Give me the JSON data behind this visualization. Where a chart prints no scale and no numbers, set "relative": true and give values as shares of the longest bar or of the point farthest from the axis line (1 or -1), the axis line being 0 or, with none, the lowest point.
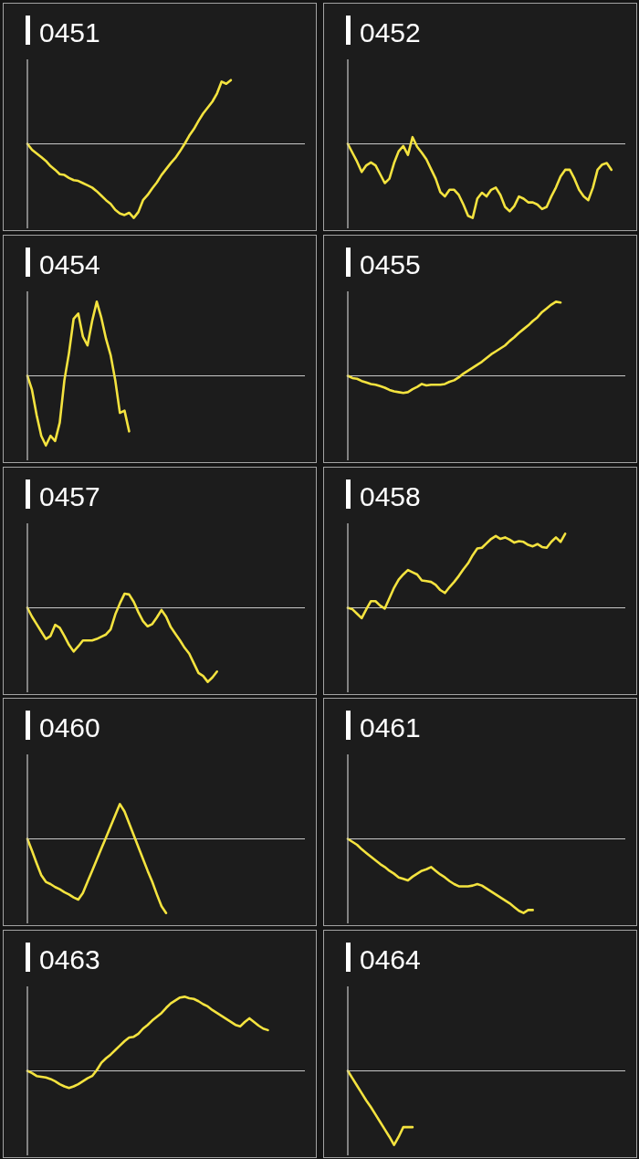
{
  "chart_data": [
    {
      "type": "line",
      "title": "0451",
      "relative": true,
      "ref_lines": [
        {
          "axis": "y",
          "value": 0,
          "color": "#c8c8c8"
        }
      ],
      "categories": [
        null,
        null,
        null,
        null,
        null,
        null,
        null,
        null,
        null,
        null,
        null,
        null,
        null,
        null,
        null,
        null,
        null,
        null,
        null,
        null,
        null,
        null,
        null,
        null,
        null,
        null,
        null,
        null,
        null,
        null,
        null,
        null,
        null,
        null,
        null,
        null,
        null,
        null,
        null,
        null,
        null,
        null,
        null,
        null,
        null,
        null,
        null,
        null,
        null,
        null,
        null,
        null,
        null,
        null,
        null,
        null,
        null,
        null,
        null,
        null,
        null
      ],
      "series": [
        {
          "color": "#f4e33f",
          "values": [
            0,
            -0.08,
            -0.13,
            -0.18,
            -0.23,
            -0.3,
            -0.35,
            -0.41,
            -0.42,
            -0.46,
            -0.49,
            -0.5,
            -0.53,
            -0.56,
            -0.59,
            -0.64,
            -0.7,
            -0.76,
            -0.81,
            -0.89,
            -0.94,
            -0.96,
            -0.93,
            -1,
            -0.92,
            -0.76,
            -0.69,
            -0.6,
            -0.52,
            -0.42,
            -0.34,
            -0.26,
            -0.19,
            -0.1,
            0,
            0.11,
            0.2,
            0.31,
            0.41,
            0.49,
            0.57,
            0.68,
            0.84,
            0.81,
            0.86,
            null,
            null,
            null,
            null,
            null,
            null,
            null,
            null,
            null,
            null,
            null,
            null,
            null,
            null,
            null,
            null
          ]
        }
      ]
    },
    {
      "type": "line",
      "title": "0452",
      "relative": true,
      "ref_lines": [
        {
          "axis": "y",
          "value": 0,
          "color": "#c8c8c8"
        }
      ],
      "categories": [
        null,
        null,
        null,
        null,
        null,
        null,
        null,
        null,
        null,
        null,
        null,
        null,
        null,
        null,
        null,
        null,
        null,
        null,
        null,
        null,
        null,
        null,
        null,
        null,
        null,
        null,
        null,
        null,
        null,
        null,
        null,
        null,
        null,
        null,
        null,
        null,
        null,
        null,
        null,
        null,
        null,
        null,
        null,
        null,
        null,
        null,
        null,
        null,
        null,
        null,
        null,
        null,
        null,
        null,
        null,
        null,
        null,
        null,
        null,
        null,
        null
      ],
      "series": [
        {
          "color": "#f4e33f",
          "values": [
            0,
            -0.12,
            -0.24,
            -0.38,
            -0.29,
            -0.25,
            -0.29,
            -0.41,
            -0.53,
            -0.47,
            -0.26,
            -0.1,
            -0.03,
            -0.15,
            0.09,
            -0.04,
            -0.12,
            -0.21,
            -0.34,
            -0.47,
            -0.65,
            -0.71,
            -0.62,
            -0.62,
            -0.69,
            -0.82,
            -0.97,
            -1,
            -0.74,
            -0.66,
            -0.71,
            -0.62,
            -0.59,
            -0.69,
            -0.85,
            -0.91,
            -0.84,
            -0.71,
            -0.74,
            -0.79,
            -0.79,
            -0.82,
            -0.88,
            -0.85,
            -0.71,
            -0.59,
            -0.44,
            -0.35,
            -0.35,
            -0.47,
            -0.62,
            -0.71,
            -0.76,
            -0.59,
            -0.35,
            -0.28,
            -0.26,
            -0.35,
            null,
            null,
            null
          ]
        }
      ]
    },
    {
      "type": "line",
      "title": "0454",
      "relative": true,
      "ref_lines": [
        {
          "axis": "y",
          "value": 0,
          "color": "#c8c8c8"
        }
      ],
      "categories": [
        null,
        null,
        null,
        null,
        null,
        null,
        null,
        null,
        null,
        null,
        null,
        null,
        null,
        null,
        null,
        null,
        null,
        null,
        null,
        null,
        null,
        null,
        null,
        null,
        null,
        null,
        null,
        null,
        null,
        null,
        null,
        null,
        null,
        null,
        null,
        null,
        null,
        null,
        null,
        null,
        null,
        null,
        null,
        null,
        null,
        null,
        null,
        null,
        null,
        null,
        null,
        null,
        null,
        null,
        null,
        null,
        null,
        null,
        null,
        null,
        null
      ],
      "series": [
        {
          "color": "#f4e33f",
          "values": [
            0,
            -0.19,
            -0.53,
            -0.81,
            -0.94,
            -0.81,
            -0.88,
            -0.63,
            -0.06,
            0.31,
            0.77,
            0.84,
            0.53,
            0.41,
            0.74,
            1,
            0.78,
            0.5,
            0.28,
            -0.06,
            -0.5,
            -0.47,
            -0.75,
            null,
            null,
            null,
            null,
            null,
            null,
            null,
            null,
            null,
            null,
            null,
            null,
            null,
            null,
            null,
            null,
            null,
            null,
            null,
            null,
            null,
            null,
            null,
            null,
            null,
            null,
            null,
            null,
            null,
            null,
            null,
            null,
            null,
            null,
            null,
            null,
            null,
            null
          ]
        }
      ]
    },
    {
      "type": "line",
      "title": "0455",
      "relative": true,
      "ref_lines": [
        {
          "axis": "y",
          "value": 0,
          "color": "#c8c8c8"
        }
      ],
      "categories": [
        null,
        null,
        null,
        null,
        null,
        null,
        null,
        null,
        null,
        null,
        null,
        null,
        null,
        null,
        null,
        null,
        null,
        null,
        null,
        null,
        null,
        null,
        null,
        null,
        null,
        null,
        null,
        null,
        null,
        null,
        null,
        null,
        null,
        null,
        null,
        null,
        null,
        null,
        null,
        null,
        null,
        null,
        null,
        null,
        null,
        null,
        null,
        null,
        null,
        null,
        null,
        null,
        null,
        null,
        null,
        null,
        null,
        null,
        null,
        null,
        null
      ],
      "series": [
        {
          "color": "#f4e33f",
          "values": [
            0,
            -0.03,
            -0.04,
            -0.07,
            -0.09,
            -0.11,
            -0.12,
            -0.14,
            -0.16,
            -0.19,
            -0.21,
            -0.22,
            -0.23,
            -0.22,
            -0.18,
            -0.15,
            -0.11,
            -0.13,
            -0.12,
            -0.12,
            -0.12,
            -0.11,
            -0.08,
            -0.06,
            -0.02,
            0.03,
            0.07,
            0.11,
            0.15,
            0.19,
            0.24,
            0.29,
            0.33,
            0.37,
            0.41,
            0.47,
            0.52,
            0.58,
            0.63,
            0.68,
            0.74,
            0.79,
            0.86,
            0.91,
            0.96,
            1,
            0.99,
            null,
            null,
            null,
            null,
            null,
            null,
            null,
            null,
            null,
            null,
            null,
            null,
            null,
            null
          ]
        }
      ]
    },
    {
      "type": "line",
      "title": "0457",
      "relative": true,
      "ref_lines": [
        {
          "axis": "y",
          "value": 0,
          "color": "#c8c8c8"
        }
      ],
      "categories": [
        null,
        null,
        null,
        null,
        null,
        null,
        null,
        null,
        null,
        null,
        null,
        null,
        null,
        null,
        null,
        null,
        null,
        null,
        null,
        null,
        null,
        null,
        null,
        null,
        null,
        null,
        null,
        null,
        null,
        null,
        null,
        null,
        null,
        null,
        null,
        null,
        null,
        null,
        null,
        null,
        null,
        null,
        null,
        null,
        null,
        null,
        null,
        null,
        null,
        null,
        null,
        null,
        null,
        null,
        null,
        null,
        null,
        null,
        null,
        null,
        null
      ],
      "series": [
        {
          "color": "#f4e33f",
          "values": [
            0,
            -0.12,
            -0.22,
            -0.32,
            -0.42,
            -0.38,
            -0.23,
            -0.27,
            -0.38,
            -0.5,
            -0.59,
            -0.52,
            -0.44,
            -0.44,
            -0.44,
            -0.42,
            -0.39,
            -0.36,
            -0.29,
            -0.09,
            0.06,
            0.19,
            0.18,
            0.08,
            -0.06,
            -0.18,
            -0.25,
            -0.22,
            -0.13,
            -0.03,
            -0.12,
            -0.26,
            -0.35,
            -0.44,
            -0.54,
            -0.62,
            -0.75,
            -0.88,
            -0.92,
            -1,
            -0.94,
            -0.86,
            null,
            null,
            null,
            null,
            null,
            null,
            null,
            null,
            null,
            null,
            null,
            null,
            null,
            null,
            null,
            null,
            null,
            null,
            null
          ]
        }
      ]
    },
    {
      "type": "line",
      "title": "0458",
      "relative": true,
      "ref_lines": [
        {
          "axis": "y",
          "value": 0,
          "color": "#c8c8c8"
        }
      ],
      "categories": [
        null,
        null,
        null,
        null,
        null,
        null,
        null,
        null,
        null,
        null,
        null,
        null,
        null,
        null,
        null,
        null,
        null,
        null,
        null,
        null,
        null,
        null,
        null,
        null,
        null,
        null,
        null,
        null,
        null,
        null,
        null,
        null,
        null,
        null,
        null,
        null,
        null,
        null,
        null,
        null,
        null,
        null,
        null,
        null,
        null,
        null,
        null,
        null,
        null,
        null,
        null,
        null,
        null,
        null,
        null,
        null,
        null,
        null,
        null,
        null,
        null
      ],
      "series": [
        {
          "color": "#f4e33f",
          "values": [
            0,
            -0.02,
            -0.08,
            -0.14,
            -0.02,
            0.09,
            0.09,
            0.03,
            -0.01,
            0.13,
            0.27,
            0.38,
            0.45,
            0.51,
            0.48,
            0.45,
            0.37,
            0.36,
            0.35,
            0.31,
            0.24,
            0.2,
            0.28,
            0.35,
            0.43,
            0.52,
            0.6,
            0.71,
            0.8,
            0.81,
            0.87,
            0.93,
            0.97,
            0.93,
            0.95,
            0.92,
            0.88,
            0.9,
            0.89,
            0.85,
            0.83,
            0.86,
            0.82,
            0.81,
            0.89,
            0.95,
            0.89,
            1,
            null,
            null,
            null,
            null,
            null,
            null,
            null,
            null,
            null,
            null,
            null,
            null,
            null
          ]
        }
      ]
    },
    {
      "type": "line",
      "title": "0460",
      "relative": true,
      "ref_lines": [
        {
          "axis": "y",
          "value": 0,
          "color": "#c8c8c8"
        }
      ],
      "categories": [
        null,
        null,
        null,
        null,
        null,
        null,
        null,
        null,
        null,
        null,
        null,
        null,
        null,
        null,
        null,
        null,
        null,
        null,
        null,
        null,
        null,
        null,
        null,
        null,
        null,
        null,
        null,
        null,
        null,
        null,
        null,
        null,
        null,
        null,
        null,
        null,
        null,
        null,
        null,
        null,
        null,
        null,
        null,
        null,
        null,
        null,
        null,
        null,
        null,
        null,
        null,
        null,
        null,
        null,
        null,
        null,
        null,
        null,
        null,
        null,
        null
      ],
      "series": [
        {
          "color": "#f4e33f",
          "values": [
            0,
            -0.16,
            -0.33,
            -0.49,
            -0.58,
            -0.61,
            -0.65,
            -0.68,
            -0.72,
            -0.75,
            -0.79,
            -0.82,
            -0.73,
            -0.58,
            -0.43,
            -0.28,
            -0.13,
            0.02,
            0.17,
            0.32,
            0.47,
            0.37,
            0.21,
            0.05,
            -0.11,
            -0.27,
            -0.43,
            -0.58,
            -0.75,
            -0.91,
            -1,
            null,
            null,
            null,
            null,
            null,
            null,
            null,
            null,
            null,
            null,
            null,
            null,
            null,
            null,
            null,
            null,
            null,
            null,
            null,
            null,
            null,
            null,
            null,
            null,
            null,
            null,
            null,
            null,
            null,
            null
          ]
        }
      ]
    },
    {
      "type": "line",
      "title": "0461",
      "relative": true,
      "ref_lines": [
        {
          "axis": "y",
          "value": 0,
          "color": "#c8c8c8"
        }
      ],
      "categories": [
        null,
        null,
        null,
        null,
        null,
        null,
        null,
        null,
        null,
        null,
        null,
        null,
        null,
        null,
        null,
        null,
        null,
        null,
        null,
        null,
        null,
        null,
        null,
        null,
        null,
        null,
        null,
        null,
        null,
        null,
        null,
        null,
        null,
        null,
        null,
        null,
        null,
        null,
        null,
        null,
        null,
        null,
        null,
        null,
        null,
        null,
        null,
        null,
        null,
        null,
        null,
        null,
        null,
        null,
        null,
        null,
        null,
        null,
        null,
        null,
        null
      ],
      "series": [
        {
          "color": "#f4e33f",
          "values": [
            0,
            -0.04,
            -0.08,
            -0.14,
            -0.19,
            -0.24,
            -0.29,
            -0.34,
            -0.38,
            -0.43,
            -0.47,
            -0.52,
            -0.54,
            -0.56,
            -0.51,
            -0.47,
            -0.43,
            -0.41,
            -0.38,
            -0.43,
            -0.48,
            -0.52,
            -0.57,
            -0.61,
            -0.64,
            -0.64,
            -0.64,
            -0.63,
            -0.61,
            -0.63,
            -0.67,
            -0.71,
            -0.75,
            -0.79,
            -0.83,
            -0.87,
            -0.92,
            -0.97,
            -1,
            -0.96,
            -0.96,
            null,
            null,
            null,
            null,
            null,
            null,
            null,
            null,
            null,
            null,
            null,
            null,
            null,
            null,
            null,
            null,
            null,
            null,
            null,
            null
          ]
        }
      ]
    },
    {
      "type": "line",
      "title": "0463",
      "relative": true,
      "ref_lines": [
        {
          "axis": "y",
          "value": 0,
          "color": "#c8c8c8"
        }
      ],
      "categories": [
        null,
        null,
        null,
        null,
        null,
        null,
        null,
        null,
        null,
        null,
        null,
        null,
        null,
        null,
        null,
        null,
        null,
        null,
        null,
        null,
        null,
        null,
        null,
        null,
        null,
        null,
        null,
        null,
        null,
        null,
        null,
        null,
        null,
        null,
        null,
        null,
        null,
        null,
        null,
        null,
        null,
        null,
        null,
        null,
        null,
        null,
        null,
        null,
        null,
        null,
        null,
        null,
        null,
        null,
        null,
        null,
        null,
        null,
        null,
        null,
        null
      ],
      "series": [
        {
          "color": "#f4e33f",
          "values": [
            0,
            -0.03,
            -0.07,
            -0.08,
            -0.09,
            -0.11,
            -0.14,
            -0.18,
            -0.21,
            -0.23,
            -0.21,
            -0.18,
            -0.14,
            -0.1,
            -0.07,
            0.01,
            0.11,
            0.17,
            0.22,
            0.28,
            0.34,
            0.4,
            0.45,
            0.46,
            0.5,
            0.57,
            0.62,
            0.68,
            0.73,
            0.78,
            0.85,
            0.91,
            0.95,
            0.99,
            1,
            0.98,
            0.97,
            0.94,
            0.9,
            0.87,
            0.82,
            0.78,
            0.74,
            0.7,
            0.66,
            0.62,
            0.6,
            0.66,
            0.71,
            0.66,
            0.61,
            0.57,
            0.55,
            null,
            null,
            null,
            null,
            null,
            null,
            null,
            null
          ]
        }
      ]
    },
    {
      "type": "line",
      "title": "0464",
      "relative": true,
      "ref_lines": [
        {
          "axis": "y",
          "value": 0,
          "color": "#c8c8c8"
        }
      ],
      "categories": [
        null,
        null,
        null,
        null,
        null,
        null,
        null,
        null,
        null,
        null,
        null,
        null,
        null,
        null,
        null,
        null,
        null,
        null,
        null,
        null,
        null,
        null,
        null,
        null,
        null,
        null,
        null,
        null,
        null,
        null,
        null,
        null,
        null,
        null,
        null,
        null,
        null,
        null,
        null,
        null,
        null,
        null,
        null,
        null,
        null,
        null,
        null,
        null,
        null,
        null,
        null,
        null,
        null,
        null,
        null,
        null,
        null,
        null,
        null,
        null,
        null
      ],
      "series": [
        {
          "color": "#f4e33f",
          "values": [
            0,
            -0.1,
            -0.2,
            -0.3,
            -0.4,
            -0.49,
            -0.59,
            -0.69,
            -0.79,
            -0.89,
            -1,
            -0.89,
            -0.76,
            -0.76,
            -0.76,
            null,
            null,
            null,
            null,
            null,
            null,
            null,
            null,
            null,
            null,
            null,
            null,
            null,
            null,
            null,
            null,
            null,
            null,
            null,
            null,
            null,
            null,
            null,
            null,
            null,
            null,
            null,
            null,
            null,
            null,
            null,
            null,
            null,
            null,
            null,
            null,
            null,
            null,
            null,
            null,
            null,
            null,
            null,
            null,
            null,
            null
          ]
        }
      ]
    }
  ]
}
